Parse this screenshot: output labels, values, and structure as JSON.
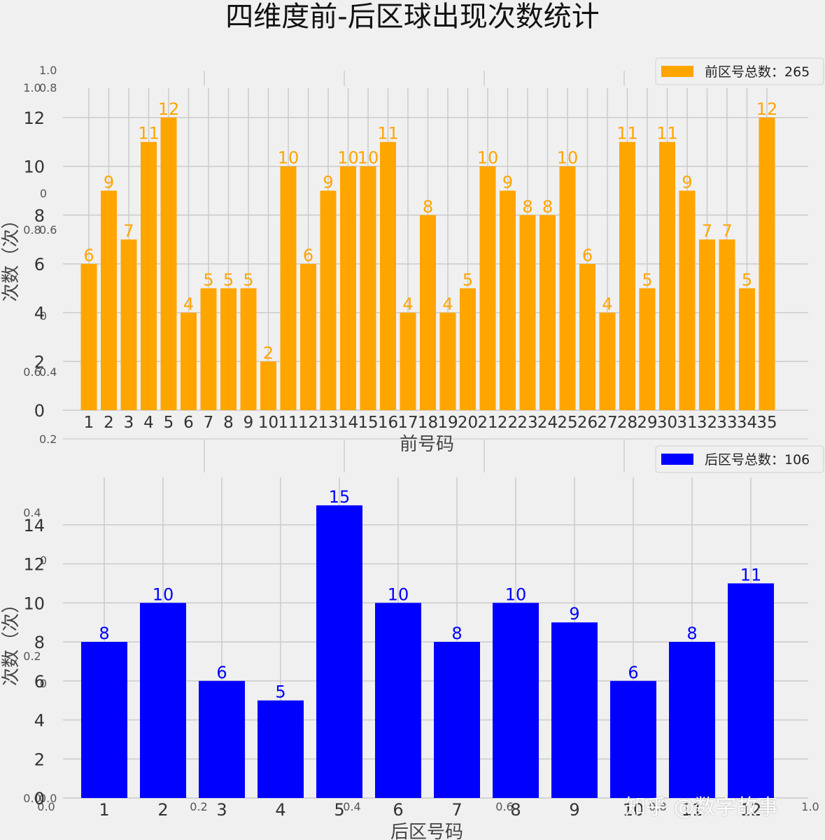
{
  "figure": {
    "title": "四维度前-后区球出现次数统计",
    "watermark": "知乎 @数字故事",
    "background": "#f0f0f0"
  },
  "chart_data": [
    {
      "type": "bar",
      "name": "front",
      "color": "#ffa500",
      "xlabel": "前号码",
      "ylabel": "次数（次）",
      "legend": "前区号总数：265",
      "legend_position": "top-right",
      "categories": [
        "1",
        "2",
        "3",
        "4",
        "5",
        "6",
        "7",
        "8",
        "9",
        "10",
        "11",
        "12",
        "13",
        "14",
        "15",
        "16",
        "17",
        "18",
        "19",
        "20",
        "21",
        "22",
        "23",
        "24",
        "25",
        "26",
        "27",
        "28",
        "29",
        "30",
        "31",
        "32",
        "33",
        "34",
        "35"
      ],
      "values": [
        6,
        9,
        7,
        11,
        12,
        4,
        5,
        5,
        5,
        2,
        10,
        6,
        9,
        10,
        10,
        11,
        4,
        8,
        4,
        5,
        10,
        9,
        8,
        8,
        10,
        6,
        4,
        11,
        5,
        11,
        9,
        7,
        7,
        5,
        12
      ],
      "yticks": [
        0,
        2,
        4,
        6,
        8,
        10,
        12
      ],
      "ylim": [
        0,
        12.6
      ],
      "grid": true
    },
    {
      "type": "bar",
      "name": "back",
      "color": "#0000ff",
      "xlabel": "后区号码",
      "ylabel": "次数（次）",
      "legend": "后区号总数：106",
      "legend_position": "top-right",
      "categories": [
        "1",
        "2",
        "3",
        "4",
        "5",
        "6",
        "7",
        "8",
        "9",
        "10",
        "11",
        "12"
      ],
      "values": [
        8,
        10,
        6,
        5,
        15,
        10,
        8,
        10,
        9,
        6,
        8,
        11
      ],
      "yticks": [
        0,
        2,
        4,
        6,
        8,
        10,
        12,
        14
      ],
      "ylim": [
        0,
        15.75
      ],
      "grid": true
    }
  ],
  "ghost_axis": {
    "y_labels": [
      "1.0",
      "0.8",
      "0.6",
      "0.4",
      "0.2",
      "0.0"
    ],
    "x_labels": [
      "0.0",
      "0.2",
      "0.4",
      "0.6",
      "0.8",
      "1.0"
    ],
    "inner_top_labels": [
      "1.0",
      "0",
      "0.8",
      "0",
      "0.6"
    ],
    "inner_bottom_labels": [
      "0.4",
      "0",
      "0.2",
      "0",
      "0.0"
    ]
  }
}
